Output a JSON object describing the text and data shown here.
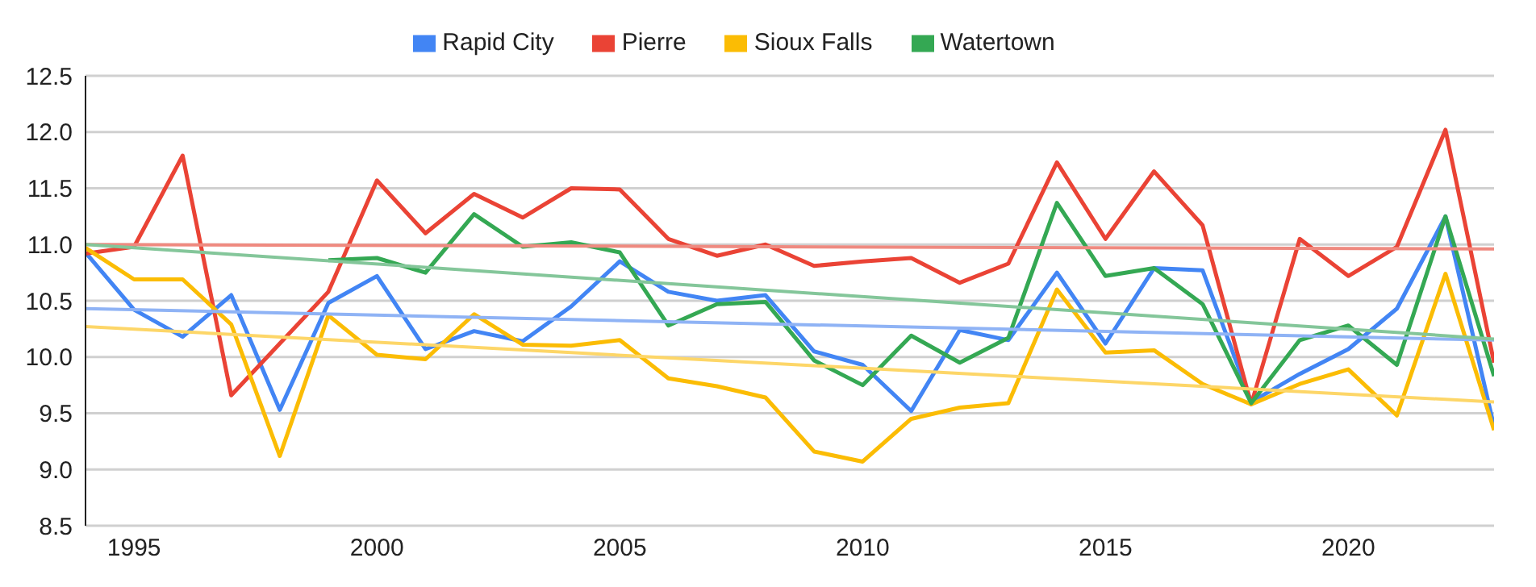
{
  "chart_data": {
    "type": "line",
    "x": [
      1994,
      1995,
      1996,
      1997,
      1998,
      1999,
      2000,
      2001,
      2002,
      2003,
      2004,
      2005,
      2006,
      2007,
      2008,
      2009,
      2010,
      2011,
      2012,
      2013,
      2014,
      2015,
      2016,
      2017,
      2018,
      2019,
      2020,
      2021,
      2022,
      2023
    ],
    "series": [
      {
        "name": "Rapid City",
        "color": "#4285f4",
        "values": [
          10.93,
          10.42,
          10.18,
          10.55,
          9.53,
          10.48,
          10.72,
          10.07,
          10.23,
          10.14,
          10.45,
          10.85,
          10.58,
          10.5,
          10.55,
          10.05,
          9.93,
          9.52,
          10.24,
          10.15,
          10.75,
          10.12,
          10.79,
          10.77,
          9.6,
          9.85,
          10.07,
          10.43,
          11.25,
          9.38
        ]
      },
      {
        "name": "Pierre",
        "color": "#ea4335",
        "values": [
          10.92,
          10.98,
          11.79,
          9.66,
          10.12,
          10.58,
          11.57,
          11.1,
          11.45,
          11.24,
          11.5,
          11.49,
          11.05,
          10.9,
          11.0,
          10.81,
          10.85,
          10.88,
          10.66,
          10.83,
          11.73,
          11.05,
          11.65,
          11.17,
          9.58,
          11.05,
          10.72,
          10.98,
          12.02,
          9.95
        ]
      },
      {
        "name": "Sioux Falls",
        "color": "#fbbc04",
        "values": [
          10.97,
          10.69,
          10.69,
          10.29,
          9.12,
          10.37,
          10.02,
          9.98,
          10.38,
          10.11,
          10.1,
          10.15,
          9.81,
          9.74,
          9.64,
          9.16,
          9.07,
          9.45,
          9.55,
          9.59,
          10.6,
          10.04,
          10.06,
          9.76,
          9.58,
          9.76,
          9.89,
          9.48,
          10.74,
          9.35
        ]
      },
      {
        "name": "Watertown",
        "color": "#34a853",
        "values": [
          null,
          null,
          null,
          null,
          null,
          10.86,
          10.88,
          10.75,
          11.27,
          10.98,
          11.02,
          10.93,
          10.28,
          10.47,
          10.49,
          9.97,
          9.75,
          10.19,
          9.95,
          10.17,
          11.37,
          10.72,
          10.79,
          10.47,
          9.59,
          10.15,
          10.28,
          9.93,
          11.25,
          9.83
        ]
      },
      {
        "type": "line",
        "color": "#8fb3f5",
        "values": [
          10.43,
          null,
          null,
          null,
          null,
          null,
          null,
          null,
          null,
          null,
          null,
          null,
          null,
          null,
          null,
          null,
          null,
          null,
          null,
          null,
          null,
          null,
          null,
          null,
          null,
          null,
          null,
          null,
          null,
          10.15
        ]
      },
      {
        "type": "line",
        "color": "#ef8a80",
        "values": [
          11.0,
          null,
          null,
          null,
          null,
          null,
          null,
          null,
          null,
          null,
          null,
          null,
          null,
          null,
          null,
          null,
          null,
          null,
          null,
          null,
          null,
          null,
          null,
          null,
          null,
          null,
          null,
          null,
          null,
          10.96
        ]
      },
      {
        "type": "line",
        "color": "#fdd668",
        "values": [
          10.27,
          null,
          null,
          null,
          null,
          null,
          null,
          null,
          null,
          null,
          null,
          null,
          null,
          null,
          null,
          null,
          null,
          null,
          null,
          null,
          null,
          null,
          null,
          null,
          null,
          null,
          null,
          null,
          null,
          9.6
        ]
      },
      {
        "type": "line",
        "color": "#84c69a",
        "values": [
          11.0,
          null,
          null,
          null,
          null,
          null,
          null,
          null,
          null,
          null,
          null,
          null,
          null,
          null,
          null,
          null,
          null,
          null,
          null,
          null,
          null,
          null,
          null,
          null,
          null,
          null,
          null,
          null,
          null,
          10.16
        ]
      }
    ],
    "xlim": [
      1994,
      2023
    ],
    "xticks": [
      1995,
      2000,
      2005,
      2010,
      2015,
      2020
    ],
    "ylim": [
      8.5,
      12.5
    ],
    "yticks": [
      {
        "value": 8.5,
        "label": "8.5"
      },
      {
        "value": 9,
        "label": "9.0"
      },
      {
        "value": 9.5,
        "label": "9.5"
      },
      {
        "value": 10,
        "label": "10.0"
      },
      {
        "value": 10.5,
        "label": "10.5"
      },
      {
        "value": 11,
        "label": "11.0"
      },
      {
        "value": 11.5,
        "label": "11.5"
      },
      {
        "value": 12,
        "label": "12.0"
      },
      {
        "value": 12.5,
        "label": "12.5"
      }
    ],
    "grid": "y",
    "legend": "top",
    "marker": "none",
    "line_style": "solid"
  }
}
